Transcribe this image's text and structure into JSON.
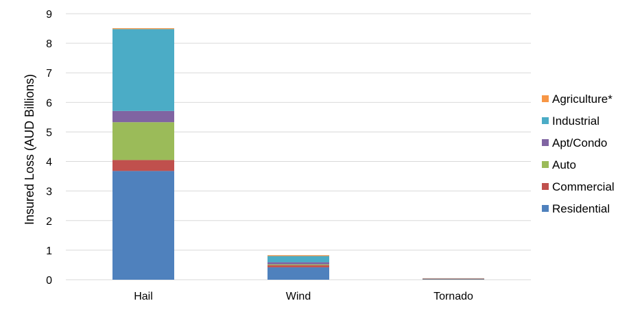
{
  "chart_data": {
    "type": "bar",
    "stacked": true,
    "title": "",
    "xlabel": "",
    "ylabel": "Insured Loss (AUD Billions)",
    "ylim": [
      0,
      9
    ],
    "yticks": [
      "0",
      "1",
      "2",
      "3",
      "4",
      "5",
      "6",
      "7",
      "8",
      "9"
    ],
    "grid": true,
    "legend_position": "right",
    "categories": [
      "Hail",
      "Wind",
      "Tornado"
    ],
    "series": [
      {
        "name": "Residential",
        "color": "#4f81bd",
        "values": [
          3.68,
          0.42,
          0.02
        ]
      },
      {
        "name": "Commercial",
        "color": "#c0504d",
        "values": [
          0.37,
          0.07,
          0.005
        ]
      },
      {
        "name": "Auto",
        "color": "#9bbb59",
        "values": [
          1.28,
          0.03,
          0.005
        ]
      },
      {
        "name": "Apt/Condo",
        "color": "#8064a2",
        "values": [
          0.38,
          0.07,
          0.005
        ]
      },
      {
        "name": "Industrial",
        "color": "#4bacc6",
        "values": [
          2.77,
          0.21,
          0.01
        ]
      },
      {
        "name": "Agriculture*",
        "color": "#f79646",
        "values": [
          0.03,
          0.03,
          0.005
        ]
      }
    ]
  }
}
